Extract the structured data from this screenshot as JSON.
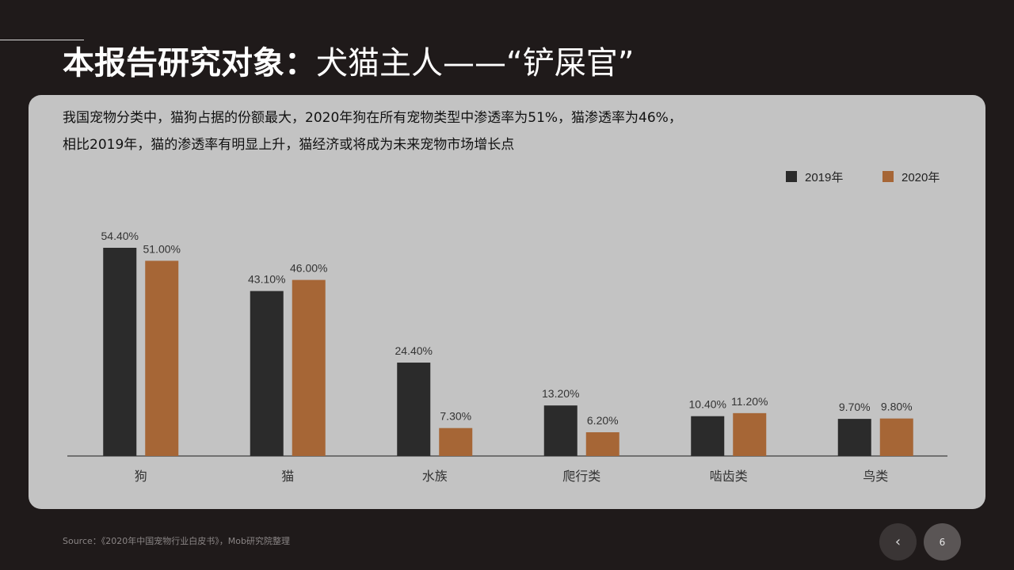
{
  "header": {
    "title_bold": "本报告研究对象：",
    "title_rest": "犬猫主人——“铲屎官”"
  },
  "description": {
    "line1": "我国宠物分类中，猫狗占据的份额最大，2020年狗在所有宠物类型中渗透率为51%，猫渗透率为46%，",
    "line2": "相比2019年，猫的渗透率有明显上升，猫经济或将成为未来宠物市场增长点"
  },
  "chart_data": {
    "type": "bar",
    "title": "",
    "xlabel": "",
    "ylabel": "",
    "ylim": [
      0,
      60
    ],
    "grid": false,
    "legend_position": "top-right",
    "categories": [
      "狗",
      "猫",
      "水族",
      "爬行类",
      "啮齿类",
      "鸟类"
    ],
    "series": [
      {
        "name": "2019年",
        "color": "#2b2b2b",
        "values": [
          54.4,
          43.1,
          24.4,
          13.2,
          10.4,
          9.7
        ],
        "labels": [
          "54.40%",
          "43.10%",
          "24.40%",
          "13.20%",
          "10.40%",
          "9.70%"
        ]
      },
      {
        "name": "2020年",
        "color": "#a66636",
        "values": [
          51.0,
          46.0,
          7.3,
          6.2,
          11.2,
          9.8
        ],
        "labels": [
          "51.00%",
          "46.00%",
          "7.30%",
          "6.20%",
          "11.20%",
          "9.80%"
        ]
      }
    ]
  },
  "footer": {
    "source": "Source：《2020年中国宠物行业白皮书》，Mob研究院整理",
    "prev_label": "‹",
    "page_number": "6"
  }
}
